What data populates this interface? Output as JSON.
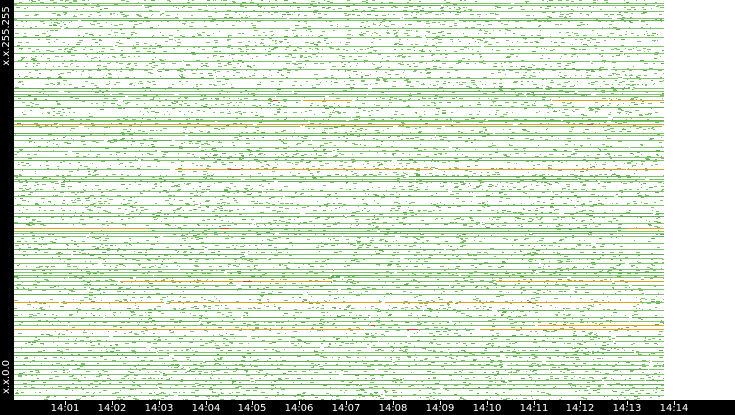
{
  "chart_data": {
    "type": "heatmap",
    "title": "",
    "xlabel": "",
    "ylabel": "",
    "x_ticks": [
      "14:01",
      "14:02",
      "14:03",
      "14:04",
      "14:05",
      "14:06",
      "14:07",
      "14:08",
      "14:09",
      "14:10",
      "14:11",
      "14:12",
      "14:13",
      "14:14"
    ],
    "y_ticks": [
      "x.x.255.255",
      "x.x.0.0"
    ],
    "colors": {
      "background": "#ffffff",
      "low": "#7cc36a",
      "mid": "#5fb34e",
      "high": "#e0a020",
      "peak": "#d04020",
      "axis": "#000000",
      "label": "#ffffff"
    },
    "rows": 400,
    "dense_rows": [
      3,
      5,
      11,
      18,
      20,
      28,
      37,
      46,
      53,
      61,
      69,
      78,
      88,
      91,
      94,
      96,
      100,
      107,
      117,
      120,
      121,
      124,
      126,
      133,
      135,
      140,
      147,
      151,
      157,
      160,
      169,
      176,
      179,
      181,
      191,
      196,
      205,
      213,
      216,
      223,
      228,
      231,
      233,
      236,
      243,
      249,
      254,
      258,
      263,
      269,
      272,
      275,
      277,
      281,
      285,
      289,
      294,
      302,
      310,
      317,
      321,
      325,
      329,
      336,
      341,
      347,
      352,
      355,
      361,
      365,
      369,
      374,
      380,
      384,
      388,
      395
    ],
    "hot_rows": [
      100,
      124,
      169,
      228,
      281,
      302,
      325,
      329,
      354,
      372
    ]
  }
}
